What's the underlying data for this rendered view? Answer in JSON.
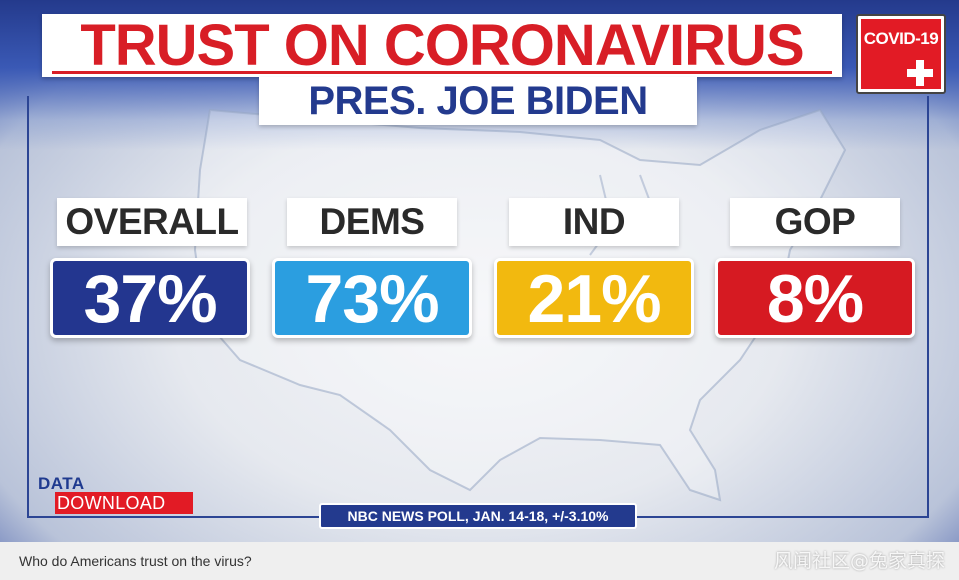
{
  "graphic": {
    "title": "TRUST ON CORONAVIRUS",
    "subtitle": "PRES. JOE BIDEN",
    "badge_label": "COVID-19",
    "badge_icon": "medical-cross-icon"
  },
  "groups": [
    {
      "label": "OVERALL",
      "value": "37%",
      "color": "#23368f"
    },
    {
      "label": "DEMS",
      "value": "73%",
      "color": "#2b9ee0"
    },
    {
      "label": "IND",
      "value": "21%",
      "color": "#f2b90f"
    },
    {
      "label": "GOP",
      "value": "8%",
      "color": "#d61a22"
    }
  ],
  "logo": {
    "line1": "DATA",
    "line2": "DOWNLOAD"
  },
  "source": "NBC NEWS POLL, JAN. 14-18, +/-3.10%",
  "caption": "Who do Americans trust on the virus?",
  "watermark": "风闻社区@兔家真探",
  "colors": {
    "title_red": "#d81e26",
    "navy": "#233a8e"
  }
}
